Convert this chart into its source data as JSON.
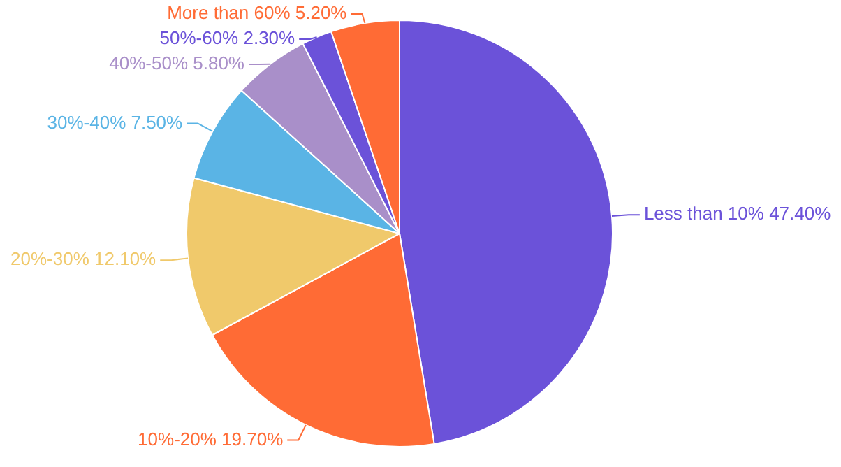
{
  "chart_data": {
    "type": "pie",
    "categories": [
      "Less than 10%",
      "10%-20%",
      "20%-30%",
      "30%-40%",
      "40%-50%",
      "50%-60%",
      "More than 60%"
    ],
    "values": [
      47.4,
      19.7,
      12.1,
      7.5,
      5.8,
      2.3,
      5.2
    ],
    "value_labels": [
      "47.40%",
      "19.70%",
      "12.10%",
      "7.50%",
      "5.80%",
      "2.30%",
      "5.20%"
    ],
    "colors": [
      "#6b52d9",
      "#ff6b35",
      "#f0c96b",
      "#5ab4e5",
      "#a98fc9",
      "#6b52d9",
      "#ff6b35"
    ],
    "legend": false
  }
}
